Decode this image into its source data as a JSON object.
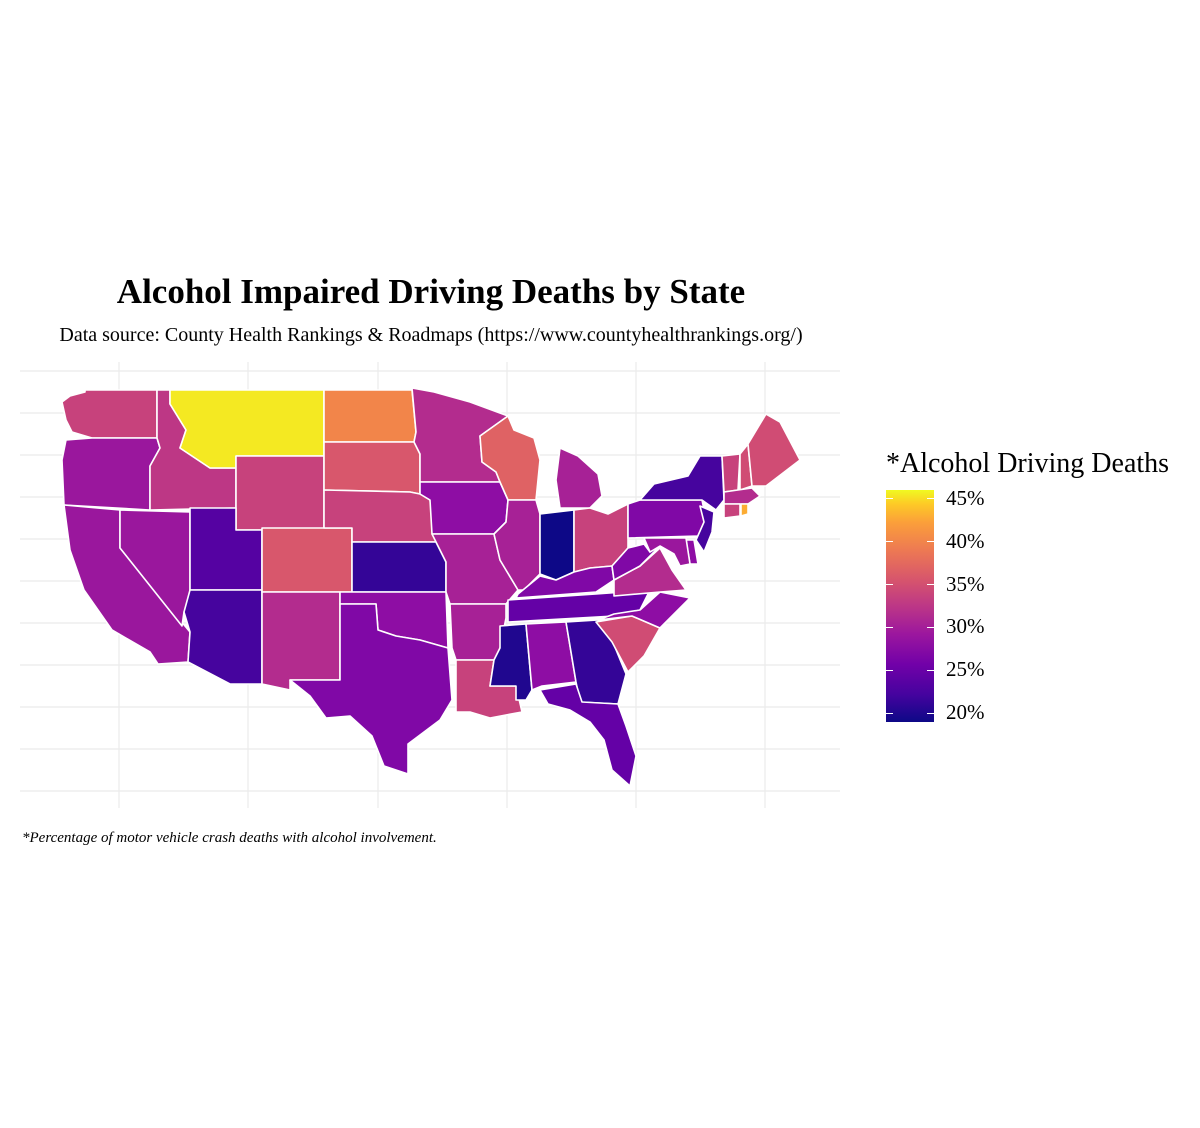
{
  "title": "Alcohol Impaired Driving Deaths by State",
  "subtitle": "Data source: County Health Rankings & Roadmaps (https://www.countyhealthrankings.org/)",
  "caption": "*Percentage of motor vehicle crash deaths with alcohol involvement.",
  "chart_data": {
    "type": "heatmap",
    "value_unit": "percent",
    "legend": {
      "title": "*Alcohol Driving Deaths",
      "ticks": [
        "45%",
        "40%",
        "35%",
        "30%",
        "25%",
        "20%"
      ],
      "tick_values": [
        45,
        40,
        35,
        30,
        25,
        20
      ],
      "range": [
        19,
        46
      ],
      "palette": "plasma",
      "placement": "right"
    },
    "states": [
      {
        "name": "Washington",
        "value": 32
      },
      {
        "name": "Oregon",
        "value": 28
      },
      {
        "name": "California",
        "value": 28
      },
      {
        "name": "Nevada",
        "value": 28
      },
      {
        "name": "Idaho",
        "value": 31
      },
      {
        "name": "Montana",
        "value": 45
      },
      {
        "name": "Wyoming",
        "value": 32
      },
      {
        "name": "Utah",
        "value": 23
      },
      {
        "name": "Arizona",
        "value": 22
      },
      {
        "name": "Colorado",
        "value": 34
      },
      {
        "name": "New Mexico",
        "value": 30
      },
      {
        "name": "North Dakota",
        "value": 38
      },
      {
        "name": "South Dakota",
        "value": 34
      },
      {
        "name": "Nebraska",
        "value": 32
      },
      {
        "name": "Kansas",
        "value": 21
      },
      {
        "name": "Oklahoma",
        "value": 27
      },
      {
        "name": "Texas",
        "value": 26
      },
      {
        "name": "Minnesota",
        "value": 30
      },
      {
        "name": "Iowa",
        "value": 27
      },
      {
        "name": "Missouri",
        "value": 29
      },
      {
        "name": "Arkansas",
        "value": 29
      },
      {
        "name": "Louisiana",
        "value": 32
      },
      {
        "name": "Wisconsin",
        "value": 35
      },
      {
        "name": "Illinois",
        "value": 29
      },
      {
        "name": "Michigan",
        "value": 29
      },
      {
        "name": "Indiana",
        "value": 19
      },
      {
        "name": "Ohio",
        "value": 32
      },
      {
        "name": "Kentucky",
        "value": 26
      },
      {
        "name": "Tennessee",
        "value": 24
      },
      {
        "name": "Mississippi",
        "value": 20
      },
      {
        "name": "Alabama",
        "value": 27
      },
      {
        "name": "Georgia",
        "value": 21
      },
      {
        "name": "Florida",
        "value": 24
      },
      {
        "name": "South Carolina",
        "value": 33
      },
      {
        "name": "North Carolina",
        "value": 27
      },
      {
        "name": "Virginia",
        "value": 30
      },
      {
        "name": "West Virginia",
        "value": 26
      },
      {
        "name": "Pennsylvania",
        "value": 26
      },
      {
        "name": "New York",
        "value": 22
      },
      {
        "name": "New Jersey",
        "value": 22
      },
      {
        "name": "Delaware",
        "value": 27
      },
      {
        "name": "Maryland",
        "value": 28
      },
      {
        "name": "Vermont",
        "value": 32
      },
      {
        "name": "New Hampshire",
        "value": 33
      },
      {
        "name": "Maine",
        "value": 33
      },
      {
        "name": "Massachusetts",
        "value": 30
      },
      {
        "name": "Connecticut",
        "value": 32
      },
      {
        "name": "Rhode Island",
        "value": 41
      }
    ]
  }
}
